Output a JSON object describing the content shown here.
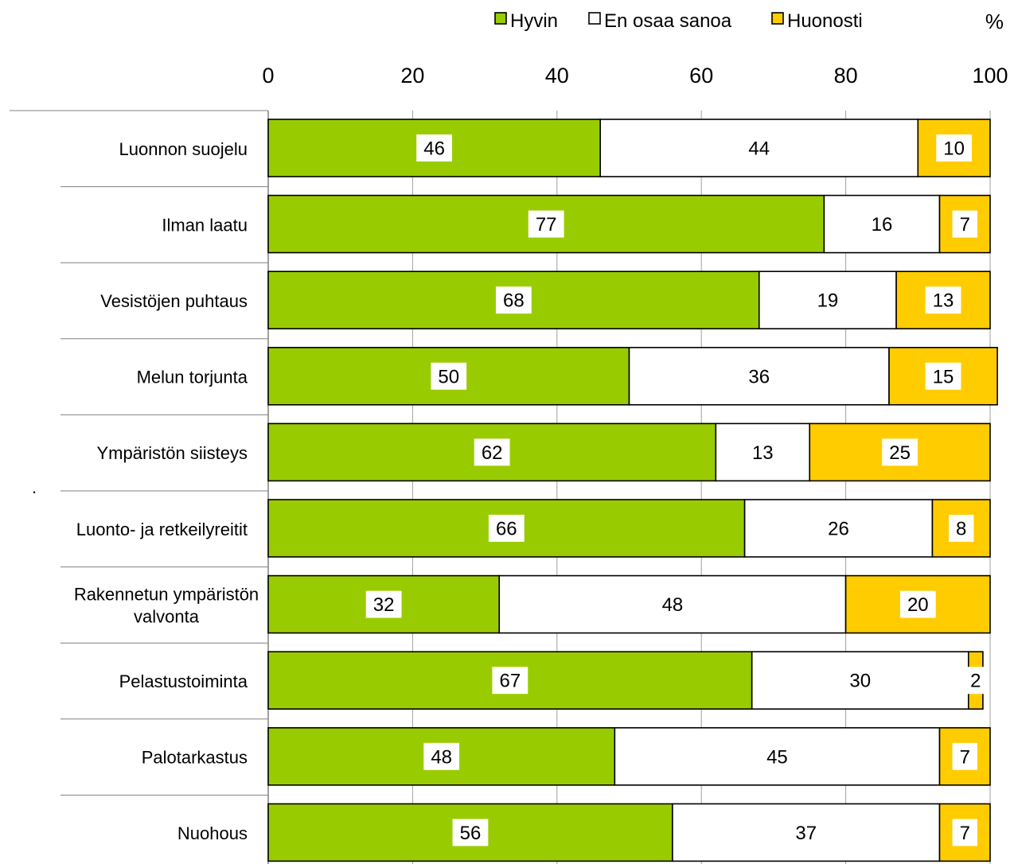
{
  "chart_data": {
    "type": "bar",
    "orientation": "horizontal",
    "stacked": true,
    "unit_label": "%",
    "xlim": [
      0,
      100
    ],
    "x_ticks": [
      0,
      20,
      40,
      60,
      80,
      100
    ],
    "grid": true,
    "legend_position": "top-right",
    "categories": [
      [
        "Luonnon suojelu"
      ],
      [
        "Ilman laatu"
      ],
      [
        "Vesistöjen puhtaus"
      ],
      [
        "Melun torjunta"
      ],
      [
        "Ympäristön siisteys"
      ],
      [
        "Luonto- ja retkeilyreitit"
      ],
      [
        "Rakennetun ympäristön",
        "valvonta"
      ],
      [
        "Pelastustoiminta"
      ],
      [
        "Palotarkastus"
      ],
      [
        "Nuohous"
      ]
    ],
    "series": [
      {
        "name": "Hyvin",
        "color": "#99cc00",
        "values": [
          46,
          77,
          68,
          50,
          62,
          66,
          32,
          67,
          48,
          56
        ]
      },
      {
        "name": "En osaa sanoa",
        "color": "#ffffff",
        "values": [
          44,
          16,
          19,
          36,
          13,
          26,
          48,
          30,
          45,
          37
        ]
      },
      {
        "name": "Huonosti",
        "color": "#ffcc00",
        "values": [
          10,
          7,
          13,
          15,
          25,
          8,
          20,
          2,
          7,
          7
        ]
      }
    ],
    "stray_mark": "."
  }
}
